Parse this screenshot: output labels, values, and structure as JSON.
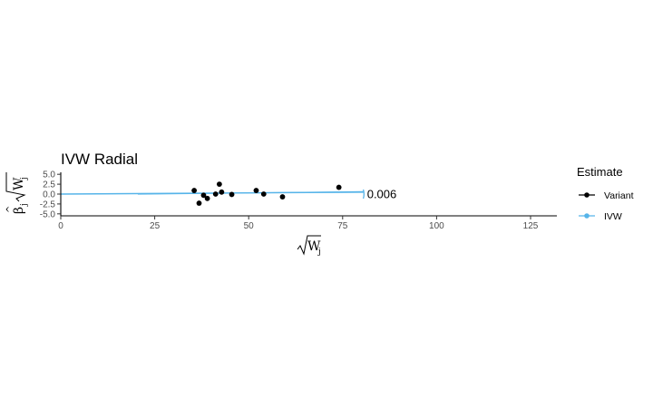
{
  "chart_data": {
    "type": "scatter",
    "title": "IVW Radial",
    "xlabel": "√Wj",
    "ylabel": "β̂j√Wj",
    "xlim": [
      0,
      132
    ],
    "ylim": [
      -5.5,
      5.5
    ],
    "x_ticks": [
      {
        "value": 0,
        "label": "0"
      },
      {
        "value": 25,
        "label": "25"
      },
      {
        "value": 50,
        "label": "50"
      },
      {
        "value": 75,
        "label": "75"
      },
      {
        "value": 100,
        "label": "100"
      },
      {
        "value": 125,
        "label": "125"
      }
    ],
    "y_ticks": [
      {
        "value": 5.0,
        "label": "5.0"
      },
      {
        "value": 2.5,
        "label": "2.5"
      },
      {
        "value": 0.0,
        "label": "0.0"
      },
      {
        "value": -2.5,
        "label": "-2.5"
      },
      {
        "value": -5.0,
        "label": "-5.0"
      }
    ],
    "grid": false,
    "legend": {
      "title": "Estimate",
      "position": "right",
      "entries": [
        {
          "label": "Variant",
          "color": "#000000"
        },
        {
          "label": "IVW",
          "color": "#56b4e9"
        }
      ]
    },
    "series": [
      {
        "name": "Variant",
        "color": "#000000",
        "points": [
          {
            "x": 35.5,
            "y": 0.9
          },
          {
            "x": 36.8,
            "y": -2.3
          },
          {
            "x": 38.0,
            "y": -0.3
          },
          {
            "x": 39.0,
            "y": -1.1
          },
          {
            "x": 41.2,
            "y": 0.0
          },
          {
            "x": 42.2,
            "y": 2.5
          },
          {
            "x": 42.8,
            "y": 0.5
          },
          {
            "x": 45.5,
            "y": -0.1
          },
          {
            "x": 52.0,
            "y": 0.9
          },
          {
            "x": 54.0,
            "y": 0.0
          },
          {
            "x": 59.0,
            "y": -0.7
          },
          {
            "x": 74.0,
            "y": 1.7
          }
        ]
      },
      {
        "name": "IVW",
        "color": "#56b4e9",
        "line": {
          "x_start": 0,
          "x_end": 80.5,
          "slope": 0.006
        },
        "extra_lines": [
          {
            "x_start": 20.5,
            "y_start": 0.0,
            "x_end": 80.5,
            "y_end": 0.6
          }
        ],
        "arc_x": 80.5
      }
    ],
    "annotations": [
      {
        "text": "0.006",
        "x": 81.5,
        "y": 0.0
      }
    ]
  }
}
